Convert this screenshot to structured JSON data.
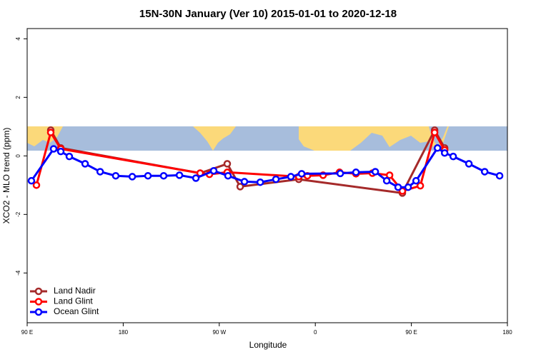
{
  "chart_data": {
    "type": "line",
    "title": "15N-30N January (Ver 10)   2015-01-01 to 2020-12-18",
    "xlabel": "Longitude",
    "ylabel": "XCO2 - MLO trend (ppm)",
    "xlim": [
      90,
      540
    ],
    "ylim": [
      -5.7,
      4.35
    ],
    "xticks": [
      {
        "value": 90,
        "label": "90 E"
      },
      {
        "value": 180,
        "label": "180"
      },
      {
        "value": 270,
        "label": "90 W"
      },
      {
        "value": 360,
        "label": "0"
      },
      {
        "value": 450,
        "label": "90 E"
      },
      {
        "value": 540,
        "label": "180"
      }
    ],
    "yticks": [
      4,
      2,
      0,
      -2,
      -4
    ],
    "legend": "bottom-left",
    "series": [
      {
        "name": "Land Nadir",
        "color": "#a52a2a",
        "x": [
          112.1,
          121.5,
          252.1,
          277.5,
          289.6,
          344.5,
          441.6,
          471.8,
          481.2
        ],
        "values": [
          0.88,
          0.27,
          -0.59,
          -0.27,
          -1.05,
          -0.8,
          -1.27,
          0.88,
          0.27
        ]
      },
      {
        "name": "Land Glint",
        "color": "#ff0000",
        "x": [
          98.7,
          112.1,
          121.5,
          252.1,
          260.8,
          277.5,
          344.5,
          352.6,
          367.3,
          382.7,
          398.1,
          413.5,
          429.6,
          441.6,
          458.4,
          471.8,
          481.2
        ],
        "values": [
          -1.0,
          0.8,
          0.24,
          -0.59,
          -0.63,
          -0.56,
          -0.71,
          -0.68,
          -0.66,
          -0.56,
          -0.61,
          -0.59,
          -0.66,
          -1.2,
          -1.02,
          0.8,
          0.2
        ]
      },
      {
        "name": "Ocean Glint",
        "color": "#0000ff",
        "x": [
          94,
          114.8,
          121.5,
          129.5,
          144.3,
          158.4,
          173,
          188.5,
          203.2,
          217.9,
          232.7,
          248.1,
          264.8,
          278.2,
          293.6,
          308.4,
          323.1,
          337.1,
          347.2,
          383.4,
          398.1,
          416.2,
          426.9,
          437.6,
          447,
          454.4,
          474.5,
          481.2,
          489.2,
          503.9,
          518.7,
          532.7
        ],
        "values": [
          -0.85,
          0.24,
          0.15,
          -0.02,
          -0.27,
          -0.54,
          -0.68,
          -0.71,
          -0.68,
          -0.68,
          -0.66,
          -0.76,
          -0.51,
          -0.68,
          -0.88,
          -0.9,
          -0.8,
          -0.71,
          -0.61,
          -0.6,
          -0.56,
          -0.54,
          -0.85,
          -1.07,
          -1.07,
          -0.85,
          0.27,
          0.1,
          -0.02,
          -0.27,
          -0.54,
          -0.68
        ]
      }
    ]
  }
}
